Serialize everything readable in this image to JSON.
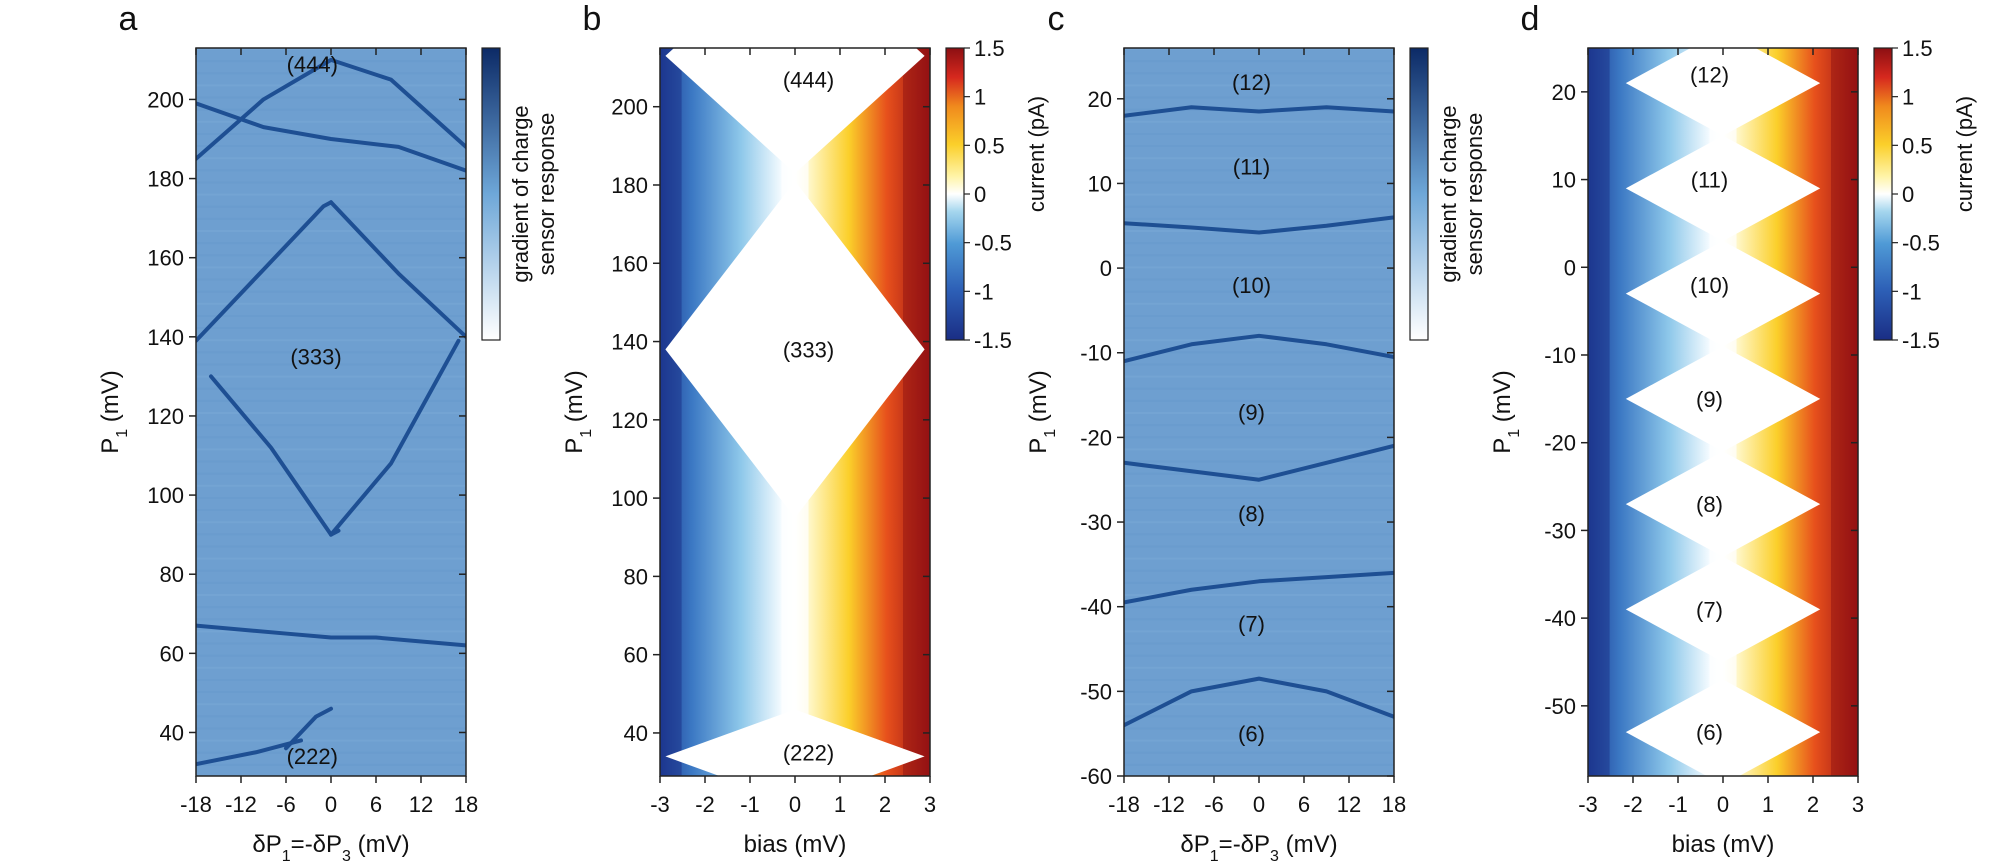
{
  "chart_data": [
    {
      "type": "heatmap",
      "panel": "a",
      "xlabel": "δP1=-δP3 (mV)",
      "ylabel": "P1 (mV)",
      "xlim": [
        -18,
        18
      ],
      "ylim": [
        29,
        213
      ],
      "xticks": [
        "-18",
        "-12",
        "-6",
        "0",
        "6",
        "12",
        "18"
      ],
      "yticks": [
        "40",
        "60",
        "80",
        "100",
        "120",
        "140",
        "160",
        "180",
        "200"
      ],
      "colorbar": {
        "label_line1": "gradient of charge",
        "label_line2": "sensor response",
        "ticks": []
      },
      "regions": [
        {
          "label": "(444)",
          "x": -2.5,
          "y": 209
        },
        {
          "label": "(333)",
          "x": -2,
          "y": 135
        },
        {
          "label": "(222)",
          "x": -2.5,
          "y": 34
        }
      ],
      "lines": [
        [
          [
            -18,
            139
          ],
          [
            -9,
            157
          ],
          [
            -1,
            173
          ],
          [
            0,
            174
          ]
        ],
        [
          [
            -16,
            130
          ],
          [
            -8,
            112
          ],
          [
            0,
            90
          ],
          [
            8,
            108
          ],
          [
            17,
            139
          ]
        ],
        [
          [
            0,
            174
          ],
          [
            9,
            156
          ],
          [
            18,
            140
          ]
        ],
        [
          [
            0,
            90
          ],
          [
            1,
            91
          ]
        ],
        [
          [
            -18,
            199
          ],
          [
            -9,
            193
          ],
          [
            0,
            190
          ],
          [
            9,
            188
          ],
          [
            18,
            182
          ]
        ],
        [
          [
            -18,
            185
          ],
          [
            -9,
            200
          ],
          [
            0,
            210
          ],
          [
            8,
            205
          ],
          [
            18,
            188
          ]
        ],
        [
          [
            -18,
            67
          ],
          [
            -6,
            65
          ],
          [
            0,
            64
          ],
          [
            6,
            64
          ],
          [
            18,
            62
          ]
        ],
        [
          [
            -6,
            36
          ],
          [
            -2,
            44
          ],
          [
            0,
            46
          ]
        ],
        [
          [
            -18,
            32
          ],
          [
            -10,
            35
          ],
          [
            -4,
            38
          ]
        ]
      ]
    },
    {
      "type": "heatmap",
      "panel": "b",
      "xlabel": "bias (mV)",
      "ylabel": "P1 (mV)",
      "xlim": [
        -3,
        3
      ],
      "ylim": [
        29,
        215
      ],
      "xticks": [
        "-3",
        "-2",
        "-1",
        "0",
        "1",
        "2",
        "3"
      ],
      "yticks": [
        "40",
        "60",
        "80",
        "100",
        "120",
        "140",
        "160",
        "180",
        "200"
      ],
      "colorbar": {
        "label": "current (pA)",
        "ticks": [
          "1.5",
          "1",
          "0.5",
          "0",
          "-0.5",
          "-1",
          "-1.5"
        ],
        "range": [
          -1.5,
          1.5
        ]
      },
      "regions": [
        {
          "label": "(444)",
          "x": 0.3,
          "y": 207
        },
        {
          "label": "(333)",
          "x": 0.3,
          "y": 138
        },
        {
          "label": "(222)",
          "x": 0.3,
          "y": 35
        }
      ],
      "diamonds": [
        {
          "center": 138,
          "halfHeight": 43
        },
        {
          "center": 213,
          "halfHeight": 30
        },
        {
          "center": 34,
          "halfHeight": 12
        }
      ]
    },
    {
      "type": "heatmap",
      "panel": "c",
      "xlabel": "δP1=-δP3 (mV)",
      "ylabel": "P1 (mV)",
      "xlim": [
        -18,
        18
      ],
      "ylim": [
        -60,
        26
      ],
      "xticks": [
        "-18",
        "-12",
        "-6",
        "0",
        "6",
        "12",
        "18"
      ],
      "yticks": [
        "-60",
        "-50",
        "-40",
        "-30",
        "-20",
        "-10",
        "0",
        "10",
        "20"
      ],
      "colorbar": {
        "label_line1": "gradient of charge",
        "label_line2": "sensor response",
        "ticks": []
      },
      "regions": [
        {
          "label": "(12)",
          "x": -1,
          "y": 22
        },
        {
          "label": "(11)",
          "x": -1,
          "y": 12
        },
        {
          "label": "(10)",
          "x": -1,
          "y": -2
        },
        {
          "label": "(9)",
          "x": -1,
          "y": -17
        },
        {
          "label": "(8)",
          "x": -1,
          "y": -29
        },
        {
          "label": "(7)",
          "x": -1,
          "y": -42
        },
        {
          "label": "(6)",
          "x": -1,
          "y": -55
        }
      ],
      "lines": [
        [
          [
            -18,
            18
          ],
          [
            -9,
            19
          ],
          [
            0,
            18.5
          ],
          [
            9,
            19
          ],
          [
            18,
            18.5
          ]
        ],
        [
          [
            -18,
            5.3
          ],
          [
            -9,
            4.8
          ],
          [
            0,
            4.2
          ],
          [
            9,
            5
          ],
          [
            18,
            6
          ]
        ],
        [
          [
            -18,
            -11
          ],
          [
            -9,
            -9
          ],
          [
            0,
            -8
          ],
          [
            9,
            -9
          ],
          [
            18,
            -10.5
          ]
        ],
        [
          [
            -18,
            -23
          ],
          [
            -9,
            -24
          ],
          [
            0,
            -25
          ],
          [
            9,
            -23
          ],
          [
            18,
            -21
          ]
        ],
        [
          [
            -18,
            -39.5
          ],
          [
            -9,
            -38
          ],
          [
            0,
            -37
          ],
          [
            9,
            -36.5
          ],
          [
            18,
            -36
          ]
        ],
        [
          [
            -18,
            -54
          ],
          [
            -9,
            -50
          ],
          [
            0,
            -48.5
          ],
          [
            9,
            -50
          ],
          [
            18,
            -53
          ]
        ]
      ]
    },
    {
      "type": "heatmap",
      "panel": "d",
      "xlabel": "bias (mV)",
      "ylabel": "P1 (mV)",
      "xlim": [
        -3,
        3
      ],
      "ylim": [
        -58,
        25
      ],
      "xticks": [
        "-3",
        "-2",
        "-1",
        "0",
        "1",
        "2",
        "3"
      ],
      "yticks": [
        "-50",
        "-40",
        "-30",
        "-20",
        "-10",
        "0",
        "10",
        "20"
      ],
      "colorbar": {
        "label": "current (pA)",
        "ticks": [
          "1.5",
          "1",
          "0.5",
          "0",
          "-0.5",
          "-1",
          "-1.5"
        ],
        "range": [
          -1.5,
          1.5
        ]
      },
      "regions": [
        {
          "label": "(12)",
          "x": -0.3,
          "y": 22
        },
        {
          "label": "(11)",
          "x": -0.3,
          "y": 10
        },
        {
          "label": "(10)",
          "x": -0.3,
          "y": -2
        },
        {
          "label": "(9)",
          "x": -0.3,
          "y": -15
        },
        {
          "label": "(8)",
          "x": -0.3,
          "y": -27
        },
        {
          "label": "(7)",
          "x": -0.3,
          "y": -39
        },
        {
          "label": "(6)",
          "x": -0.3,
          "y": -53
        }
      ],
      "diamonds": [
        {
          "center": 21,
          "halfHeight": 6
        },
        {
          "center": 9,
          "halfHeight": 6
        },
        {
          "center": -3,
          "halfHeight": 6
        },
        {
          "center": -15,
          "halfHeight": 6
        },
        {
          "center": -27,
          "halfHeight": 6
        },
        {
          "center": -39,
          "halfHeight": 6
        },
        {
          "center": -53,
          "halfHeight": 6
        }
      ]
    }
  ],
  "panel_letters": [
    "a",
    "b",
    "c",
    "d"
  ],
  "colors": {
    "sensor_background": "#6e9fd0",
    "sensor_line": "#1e4f93",
    "colormap": [
      "#1a2e85",
      "#2d5fb6",
      "#4f9ad6",
      "#9cd0ec",
      "#ffffff",
      "#fff4a8",
      "#fbcf2a",
      "#f08a1d",
      "#d6281e",
      "#8c0f12"
    ]
  }
}
